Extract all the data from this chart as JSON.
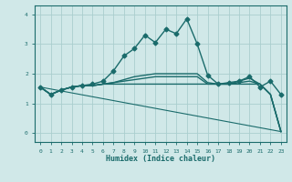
{
  "xlabel": "Humidex (Indice chaleur)",
  "ylabel": "",
  "xlim": [
    -0.5,
    23.5
  ],
  "ylim": [
    -0.3,
    4.3
  ],
  "xticks": [
    0,
    1,
    2,
    3,
    4,
    5,
    6,
    7,
    8,
    9,
    10,
    11,
    12,
    13,
    14,
    15,
    16,
    17,
    18,
    19,
    20,
    21,
    22,
    23
  ],
  "yticks": [
    0,
    1,
    2,
    3,
    4
  ],
  "background_color": "#d0e8e8",
  "grid_color": "#aacece",
  "line_color": "#1a6b6b",
  "lines": [
    {
      "x": [
        0,
        1,
        2,
        3,
        4,
        5,
        6,
        7,
        8,
        9,
        10,
        11,
        12,
        13,
        14,
        15,
        16,
        17,
        18,
        19,
        20,
        21,
        22,
        23
      ],
      "y": [
        1.55,
        1.3,
        1.45,
        1.55,
        1.6,
        1.65,
        1.75,
        2.1,
        2.6,
        2.85,
        3.3,
        3.05,
        3.5,
        3.35,
        3.85,
        3.0,
        1.95,
        1.65,
        1.7,
        1.75,
        1.9,
        1.55,
        1.75,
        1.3
      ],
      "style": "-",
      "marker": "D",
      "markersize": 2.5,
      "linewidth": 1.0
    },
    {
      "x": [
        0,
        1,
        2,
        3,
        4,
        5,
        6,
        7,
        8,
        9,
        10,
        11,
        12,
        13,
        14,
        15,
        16,
        17,
        18,
        19,
        20,
        21,
        22,
        23
      ],
      "y": [
        1.55,
        1.3,
        1.45,
        1.55,
        1.6,
        1.6,
        1.65,
        1.65,
        1.65,
        1.65,
        1.65,
        1.65,
        1.65,
        1.65,
        1.65,
        1.65,
        1.65,
        1.65,
        1.65,
        1.65,
        1.65,
        1.65,
        1.3,
        0.05
      ],
      "style": "-",
      "marker": null,
      "markersize": 0,
      "linewidth": 1.0
    },
    {
      "x": [
        0,
        1,
        2,
        3,
        4,
        5,
        6,
        7,
        8,
        9,
        10,
        11,
        12,
        13,
        14,
        15,
        16,
        17,
        18,
        19,
        20,
        21,
        22,
        23
      ],
      "y": [
        1.55,
        1.3,
        1.45,
        1.55,
        1.6,
        1.6,
        1.65,
        1.7,
        1.75,
        1.8,
        1.85,
        1.9,
        1.9,
        1.9,
        1.9,
        1.9,
        1.65,
        1.65,
        1.65,
        1.7,
        1.75,
        1.65,
        1.3,
        0.05
      ],
      "style": "-",
      "marker": null,
      "markersize": 0,
      "linewidth": 1.0
    },
    {
      "x": [
        0,
        1,
        2,
        3,
        4,
        5,
        6,
        7,
        8,
        9,
        10,
        11,
        12,
        13,
        14,
        15,
        16,
        17,
        18,
        19,
        20,
        21,
        22,
        23
      ],
      "y": [
        1.55,
        1.3,
        1.45,
        1.55,
        1.6,
        1.6,
        1.65,
        1.7,
        1.8,
        1.9,
        1.95,
        2.0,
        2.0,
        2.0,
        2.0,
        2.0,
        1.7,
        1.65,
        1.65,
        1.75,
        1.85,
        1.65,
        1.3,
        0.05
      ],
      "style": "-",
      "marker": null,
      "markersize": 0,
      "linewidth": 1.0
    },
    {
      "x": [
        0,
        23
      ],
      "y": [
        1.55,
        0.05
      ],
      "style": "-",
      "marker": null,
      "markersize": 0,
      "linewidth": 0.8
    }
  ]
}
